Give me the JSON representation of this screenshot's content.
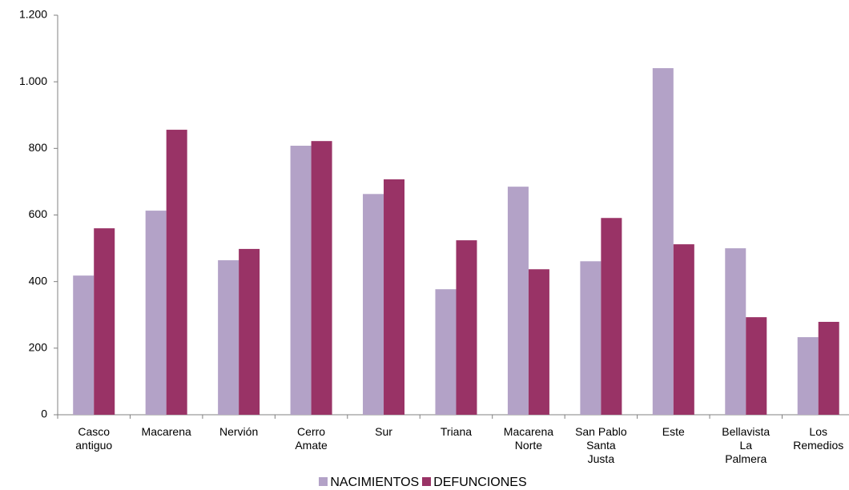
{
  "chart_data": {
    "type": "bar",
    "categories": [
      "Casco\nantiguo",
      "Macarena",
      "Nervión",
      "Cerro\nAmate",
      "Sur",
      "Triana",
      "Macarena\nNorte",
      "San Pablo\nSanta\nJusta",
      "Este",
      "Bellavista\nLa\nPalmera",
      "Los\nRemedios"
    ],
    "series": [
      {
        "name": "NACIMIENTOS",
        "color": "#b3a2c7",
        "values": [
          418,
          613,
          464,
          808,
          663,
          377,
          685,
          461,
          1041,
          500,
          233
        ]
      },
      {
        "name": "DEFUNCIONES",
        "color": "#993366",
        "values": [
          560,
          856,
          498,
          822,
          707,
          524,
          437,
          591,
          512,
          293,
          279
        ]
      }
    ],
    "ylim": [
      0,
      1200
    ],
    "yticks": [
      0,
      200,
      400,
      600,
      800,
      {
        "value": 1000,
        "label": "1.000"
      },
      {
        "value": 1200,
        "label": "1.200"
      }
    ],
    "grid": false,
    "legend": "bottom"
  }
}
